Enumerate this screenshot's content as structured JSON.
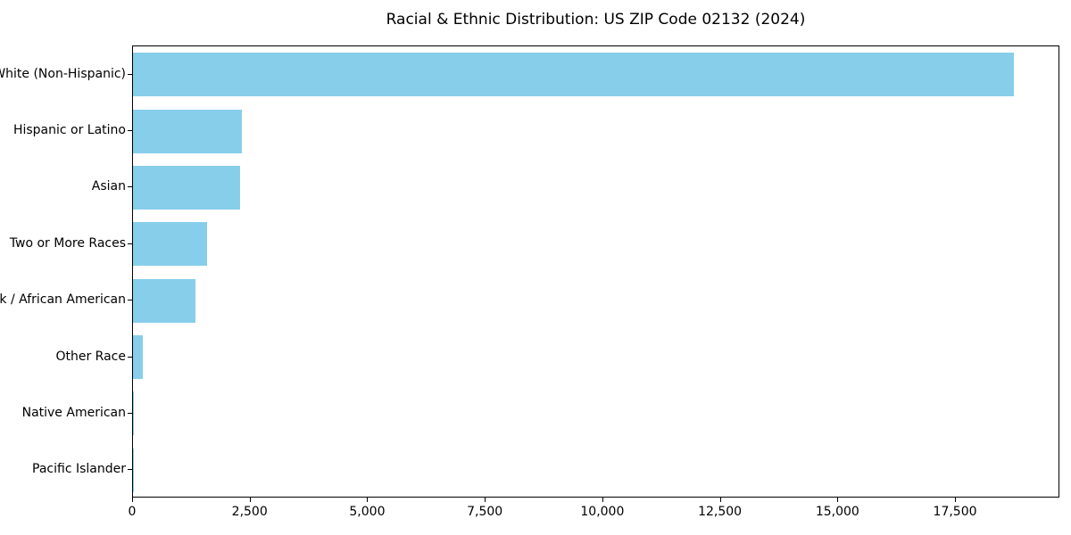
{
  "chart_data": {
    "type": "bar",
    "orientation": "horizontal",
    "title": "Racial & Ethnic Distribution: US ZIP Code 02132 (2024)",
    "categories": [
      "White (Non-Hispanic)",
      "Hispanic or Latino",
      "Asian",
      "Two or More Races",
      "Black / African American",
      "Other Race",
      "Native American",
      "Pacific Islander"
    ],
    "values": [
      18770,
      2320,
      2280,
      1570,
      1340,
      210,
      25,
      5
    ],
    "xlabel": "",
    "ylabel": "",
    "xlim": [
      0,
      19720
    ],
    "xticks": [
      0,
      2500,
      5000,
      7500,
      10000,
      12500,
      15000,
      17500
    ],
    "xtick_labels": [
      "0",
      "2,500",
      "5,000",
      "7,500",
      "10,000",
      "12,500",
      "15,000",
      "17,500"
    ],
    "grid": false,
    "legend": null,
    "bar_color": "#87CEEB",
    "axis_color": "#000000",
    "text_color": "#000000",
    "background_color": "#ffffff"
  }
}
